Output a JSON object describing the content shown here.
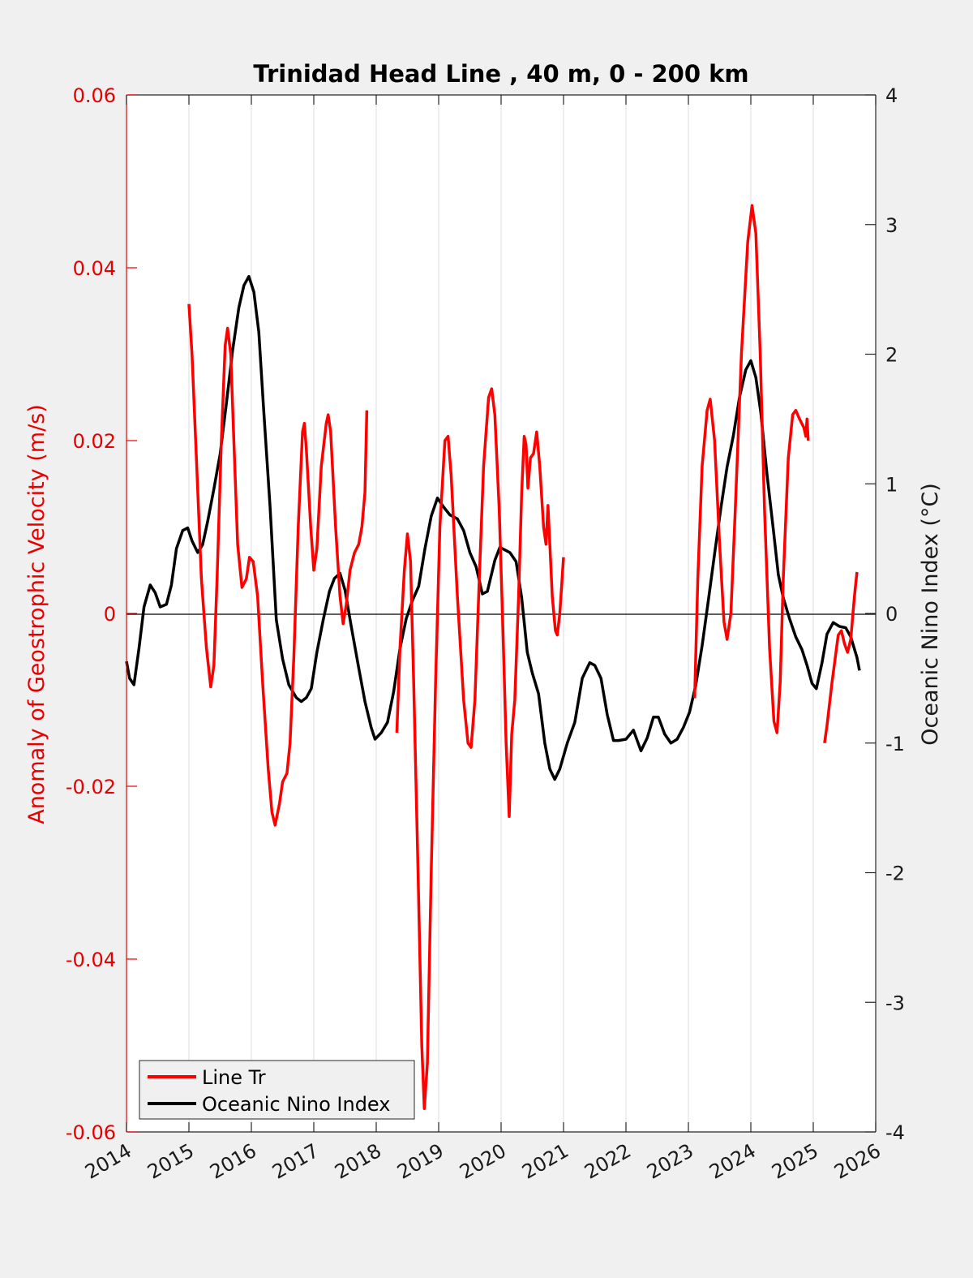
{
  "chart_data": {
    "type": "line",
    "title": "Trinidad Head Line , 40 m, 0 - 200 km",
    "xlabel": "",
    "ylabel_left": "Anomaly of Geostrophic Velocity (m/s)",
    "ylabel_right": "Oceanic Nino Index (°C)",
    "xlim": [
      2014,
      2026
    ],
    "ylim_left": [
      -0.06,
      0.06
    ],
    "ylim_right": [
      -4,
      4
    ],
    "x_ticks": [
      "2014",
      "2015",
      "2016",
      "2017",
      "2018",
      "2019",
      "2020",
      "2021",
      "2022",
      "2023",
      "2024",
      "2025",
      "2026"
    ],
    "y_left_ticks": [
      "0.06",
      "0.04",
      "0.02",
      "0",
      "-0.02",
      "-0.04",
      "-0.06"
    ],
    "y_right_ticks": [
      "4",
      "3",
      "2",
      "1",
      "0",
      "-1",
      "-2",
      "-3",
      "-4"
    ],
    "grid": "vertical",
    "legend_position": "bottom-left",
    "colors": {
      "line_tr": "#ff0000",
      "oni": "#000000",
      "left_axis": "#e60000"
    },
    "series": [
      {
        "name": "Line Tr",
        "axis": "left",
        "segments": [
          [
            [
              2015.0,
              0.0358
            ],
            [
              2015.05,
              0.03
            ],
            [
              2015.12,
              0.018
            ],
            [
              2015.2,
              0.004
            ],
            [
              2015.28,
              -0.004
            ],
            [
              2015.35,
              -0.0085
            ],
            [
              2015.4,
              -0.006
            ],
            [
              2015.45,
              0.004
            ],
            [
              2015.52,
              0.02
            ],
            [
              2015.58,
              0.031
            ],
            [
              2015.62,
              0.033
            ],
            [
              2015.67,
              0.03
            ],
            [
              2015.72,
              0.02
            ],
            [
              2015.78,
              0.008
            ],
            [
              2015.85,
              0.003
            ],
            [
              2015.92,
              0.004
            ],
            [
              2015.97,
              0.0065
            ],
            [
              2016.03,
              0.006
            ],
            [
              2016.1,
              0.002
            ],
            [
              2016.18,
              -0.008
            ],
            [
              2016.27,
              -0.018
            ],
            [
              2016.33,
              -0.023
            ],
            [
              2016.38,
              -0.0245
            ],
            [
              2016.45,
              -0.022
            ],
            [
              2016.5,
              -0.0195
            ],
            [
              2016.57,
              -0.0185
            ],
            [
              2016.62,
              -0.015
            ],
            [
              2016.68,
              -0.005
            ],
            [
              2016.75,
              0.01
            ],
            [
              2016.82,
              0.021
            ],
            [
              2016.85,
              0.022
            ],
            [
              2016.88,
              0.019
            ],
            [
              2016.95,
              0.01
            ],
            [
              2017.0,
              0.005
            ],
            [
              2017.05,
              0.0075
            ],
            [
              2017.12,
              0.017
            ],
            [
              2017.2,
              0.022
            ],
            [
              2017.23,
              0.023
            ],
            [
              2017.27,
              0.021
            ],
            [
              2017.35,
              0.01
            ],
            [
              2017.42,
              0.002
            ],
            [
              2017.47,
              -0.0012
            ],
            [
              2017.52,
              0.001
            ],
            [
              2017.58,
              0.005
            ],
            [
              2017.65,
              0.007
            ],
            [
              2017.72,
              0.008
            ],
            [
              2017.77,
              0.01
            ],
            [
              2017.82,
              0.014
            ],
            [
              2017.85,
              0.0235
            ]
          ],
          [
            [
              2018.33,
              -0.0138
            ],
            [
              2018.38,
              -0.004
            ],
            [
              2018.45,
              0.005
            ],
            [
              2018.5,
              0.0092
            ],
            [
              2018.55,
              0.006
            ],
            [
              2018.6,
              -0.008
            ],
            [
              2018.67,
              -0.03
            ],
            [
              2018.73,
              -0.05
            ],
            [
              2018.77,
              -0.0573
            ],
            [
              2018.82,
              -0.052
            ],
            [
              2018.88,
              -0.03
            ],
            [
              2018.95,
              -0.008
            ],
            [
              2019.02,
              0.01
            ],
            [
              2019.1,
              0.02
            ],
            [
              2019.15,
              0.0205
            ],
            [
              2019.2,
              0.016
            ],
            [
              2019.3,
              0.002
            ],
            [
              2019.4,
              -0.01
            ],
            [
              2019.47,
              -0.015
            ],
            [
              2019.52,
              -0.0155
            ],
            [
              2019.58,
              -0.01
            ],
            [
              2019.65,
              0.004
            ],
            [
              2019.72,
              0.017
            ],
            [
              2019.8,
              0.025
            ],
            [
              2019.85,
              0.026
            ],
            [
              2019.9,
              0.023
            ],
            [
              2019.97,
              0.012
            ],
            [
              2020.03,
              -0.002
            ],
            [
              2020.08,
              -0.015
            ],
            [
              2020.13,
              -0.0235
            ],
            [
              2020.17,
              -0.014
            ],
            [
              2020.22,
              -0.01
            ],
            [
              2020.28,
              0.002
            ],
            [
              2020.33,
              0.014
            ],
            [
              2020.37,
              0.0205
            ],
            [
              2020.4,
              0.0195
            ],
            [
              2020.43,
              0.0145
            ],
            [
              2020.47,
              0.018
            ],
            [
              2020.52,
              0.0185
            ],
            [
              2020.57,
              0.021
            ],
            [
              2020.62,
              0.017
            ],
            [
              2020.68,
              0.01
            ],
            [
              2020.72,
              0.008
            ],
            [
              2020.75,
              0.0125
            ],
            [
              2020.78,
              0.008
            ],
            [
              2020.82,
              0.002
            ],
            [
              2020.87,
              -0.002
            ],
            [
              2020.9,
              -0.0025
            ],
            [
              2020.94,
              0.0
            ],
            [
              2021.0,
              0.0065
            ]
          ],
          [
            [
              2023.1,
              -0.0098
            ],
            [
              2023.15,
              0.004
            ],
            [
              2023.22,
              0.017
            ],
            [
              2023.3,
              0.0235
            ],
            [
              2023.35,
              0.0248
            ],
            [
              2023.42,
              0.02
            ],
            [
              2023.5,
              0.008
            ],
            [
              2023.57,
              -0.001
            ],
            [
              2023.62,
              -0.003
            ],
            [
              2023.68,
              0.0
            ],
            [
              2023.75,
              0.012
            ],
            [
              2023.85,
              0.03
            ],
            [
              2023.95,
              0.043
            ],
            [
              2024.02,
              0.0472
            ],
            [
              2024.08,
              0.044
            ],
            [
              2024.15,
              0.03
            ],
            [
              2024.22,
              0.012
            ],
            [
              2024.3,
              -0.004
            ],
            [
              2024.37,
              -0.0125
            ],
            [
              2024.42,
              -0.0138
            ],
            [
              2024.47,
              -0.008
            ],
            [
              2024.52,
              0.004
            ],
            [
              2024.6,
              0.018
            ],
            [
              2024.67,
              0.023
            ],
            [
              2024.72,
              0.0235
            ],
            [
              2024.78,
              0.0225
            ],
            [
              2024.85,
              0.0215
            ],
            [
              2024.88,
              0.0205
            ],
            [
              2024.9,
              0.0225
            ],
            [
              2024.92,
              0.02
            ]
          ],
          [
            [
              2025.18,
              -0.015
            ],
            [
              2025.22,
              -0.013
            ],
            [
              2025.3,
              -0.008
            ],
            [
              2025.4,
              -0.0025
            ],
            [
              2025.45,
              -0.002
            ],
            [
              2025.5,
              -0.0035
            ],
            [
              2025.55,
              -0.0045
            ],
            [
              2025.6,
              -0.003
            ],
            [
              2025.66,
              0.002
            ],
            [
              2025.7,
              0.0048
            ]
          ]
        ]
      },
      {
        "name": "Oceanic Nino Index",
        "axis": "right",
        "points": [
          [
            2014.0,
            -0.37
          ],
          [
            2014.05,
            -0.5
          ],
          [
            2014.12,
            -0.55
          ],
          [
            2014.2,
            -0.27
          ],
          [
            2014.28,
            0.05
          ],
          [
            2014.38,
            0.22
          ],
          [
            2014.46,
            0.16
          ],
          [
            2014.54,
            0.05
          ],
          [
            2014.64,
            0.07
          ],
          [
            2014.72,
            0.22
          ],
          [
            2014.8,
            0.5
          ],
          [
            2014.9,
            0.64
          ],
          [
            2014.98,
            0.66
          ],
          [
            2015.05,
            0.56
          ],
          [
            2015.14,
            0.47
          ],
          [
            2015.22,
            0.53
          ],
          [
            2015.3,
            0.71
          ],
          [
            2015.4,
            0.96
          ],
          [
            2015.5,
            1.23
          ],
          [
            2015.6,
            1.62
          ],
          [
            2015.7,
            2.03
          ],
          [
            2015.8,
            2.36
          ],
          [
            2015.88,
            2.53
          ],
          [
            2015.96,
            2.6
          ],
          [
            2016.04,
            2.48
          ],
          [
            2016.12,
            2.17
          ],
          [
            2016.2,
            1.55
          ],
          [
            2016.3,
            0.82
          ],
          [
            2016.4,
            -0.05
          ],
          [
            2016.5,
            -0.35
          ],
          [
            2016.6,
            -0.55
          ],
          [
            2016.72,
            -0.65
          ],
          [
            2016.8,
            -0.68
          ],
          [
            2016.88,
            -0.65
          ],
          [
            2016.96,
            -0.58
          ],
          [
            2017.05,
            -0.3
          ],
          [
            2017.15,
            -0.05
          ],
          [
            2017.25,
            0.17
          ],
          [
            2017.33,
            0.27
          ],
          [
            2017.42,
            0.31
          ],
          [
            2017.5,
            0.18
          ],
          [
            2017.6,
            -0.1
          ],
          [
            2017.72,
            -0.42
          ],
          [
            2017.82,
            -0.68
          ],
          [
            2017.92,
            -0.88
          ],
          [
            2017.98,
            -0.97
          ],
          [
            2018.08,
            -0.92
          ],
          [
            2018.18,
            -0.84
          ],
          [
            2018.28,
            -0.6
          ],
          [
            2018.38,
            -0.27
          ],
          [
            2018.48,
            -0.04
          ],
          [
            2018.58,
            0.1
          ],
          [
            2018.68,
            0.21
          ],
          [
            2018.78,
            0.5
          ],
          [
            2018.88,
            0.75
          ],
          [
            2018.98,
            0.89
          ],
          [
            2019.08,
            0.82
          ],
          [
            2019.18,
            0.76
          ],
          [
            2019.3,
            0.73
          ],
          [
            2019.4,
            0.64
          ],
          [
            2019.5,
            0.47
          ],
          [
            2019.6,
            0.36
          ],
          [
            2019.7,
            0.15
          ],
          [
            2019.78,
            0.17
          ],
          [
            2019.9,
            0.41
          ],
          [
            2019.98,
            0.51
          ],
          [
            2020.06,
            0.49
          ],
          [
            2020.14,
            0.47
          ],
          [
            2020.24,
            0.4
          ],
          [
            2020.33,
            0.12
          ],
          [
            2020.42,
            -0.3
          ],
          [
            2020.5,
            -0.46
          ],
          [
            2020.6,
            -0.62
          ],
          [
            2020.7,
            -1.0
          ],
          [
            2020.78,
            -1.2
          ],
          [
            2020.86,
            -1.28
          ],
          [
            2020.94,
            -1.2
          ],
          [
            2021.06,
            -1.0
          ],
          [
            2021.18,
            -0.84
          ],
          [
            2021.3,
            -0.5
          ],
          [
            2021.42,
            -0.38
          ],
          [
            2021.5,
            -0.4
          ],
          [
            2021.6,
            -0.5
          ],
          [
            2021.7,
            -0.78
          ],
          [
            2021.8,
            -0.98
          ],
          [
            2021.88,
            -0.98
          ],
          [
            2022.0,
            -0.97
          ],
          [
            2022.12,
            -0.9
          ],
          [
            2022.24,
            -1.06
          ],
          [
            2022.34,
            -0.96
          ],
          [
            2022.44,
            -0.8
          ],
          [
            2022.52,
            -0.8
          ],
          [
            2022.62,
            -0.93
          ],
          [
            2022.72,
            -1.0
          ],
          [
            2022.82,
            -0.97
          ],
          [
            2022.92,
            -0.88
          ],
          [
            2023.02,
            -0.76
          ],
          [
            2023.12,
            -0.55
          ],
          [
            2023.22,
            -0.25
          ],
          [
            2023.32,
            0.1
          ],
          [
            2023.42,
            0.46
          ],
          [
            2023.52,
            0.81
          ],
          [
            2023.62,
            1.13
          ],
          [
            2023.72,
            1.37
          ],
          [
            2023.82,
            1.67
          ],
          [
            2023.92,
            1.88
          ],
          [
            2024.0,
            1.95
          ],
          [
            2024.08,
            1.82
          ],
          [
            2024.16,
            1.55
          ],
          [
            2024.26,
            1.07
          ],
          [
            2024.36,
            0.65
          ],
          [
            2024.44,
            0.3
          ],
          [
            2024.52,
            0.12
          ],
          [
            2024.62,
            -0.04
          ],
          [
            2024.72,
            -0.18
          ],
          [
            2024.82,
            -0.28
          ],
          [
            2024.9,
            -0.4
          ],
          [
            2024.98,
            -0.54
          ],
          [
            2025.05,
            -0.58
          ],
          [
            2025.14,
            -0.38
          ],
          [
            2025.22,
            -0.16
          ],
          [
            2025.32,
            -0.07
          ],
          [
            2025.42,
            -0.1
          ],
          [
            2025.52,
            -0.11
          ],
          [
            2025.6,
            -0.18
          ],
          [
            2025.7,
            -0.34
          ],
          [
            2025.74,
            -0.44
          ]
        ]
      }
    ],
    "legend": [
      "Line Tr",
      "Oceanic Nino Index"
    ]
  }
}
